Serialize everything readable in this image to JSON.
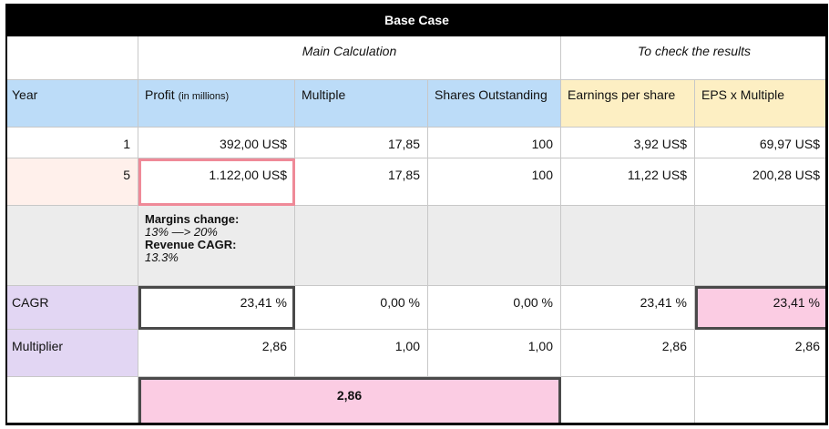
{
  "title": "Base Case",
  "sections": {
    "main": "Main Calculation",
    "check": "To check the results"
  },
  "headers": {
    "year": "Year",
    "profit": "Profit",
    "profit_unit": "(in millions)",
    "multiple": "Multiple",
    "shares": "Shares Outstanding",
    "eps": "Earnings per share",
    "eps_multiple": "EPS x Multiple"
  },
  "row1": {
    "year": "1",
    "profit": "392,00 US$",
    "multiple": "17,85",
    "shares": "100",
    "eps": "3,92 US$",
    "eps_multiple": "69,97 US$"
  },
  "row5": {
    "year": "5",
    "profit": "1.122,00 US$",
    "multiple": "17,85",
    "shares": "100",
    "eps": "11,22 US$",
    "eps_multiple": "200,28 US$"
  },
  "notes": {
    "margins_label": "Margins change:",
    "margins_value": "13% —> 20%",
    "revenue_label": "Revenue CAGR:",
    "revenue_value": "13.3%"
  },
  "cagr": {
    "label": "CAGR",
    "profit": "23,41 %",
    "multiple": "0,00 %",
    "shares": "0,00 %",
    "eps": "23,41  %",
    "eps_multiple": "23,41 %"
  },
  "multiplier": {
    "label": "Multiplier",
    "profit": "2,86",
    "multiple": "1,00",
    "shares": "1,00",
    "eps": "2,86",
    "eps_multiple": "2,86"
  },
  "result": {
    "value": "2,86"
  },
  "colors": {
    "header_blue": "#bcdcf8",
    "header_yellow": "#fdefc3",
    "row_peach": "#fff0eb",
    "notes_gray": "#ececec",
    "label_lavender": "#e2d6f3",
    "highlight_pink": "#fbcce3",
    "outline_pink": "#ef8a98"
  }
}
